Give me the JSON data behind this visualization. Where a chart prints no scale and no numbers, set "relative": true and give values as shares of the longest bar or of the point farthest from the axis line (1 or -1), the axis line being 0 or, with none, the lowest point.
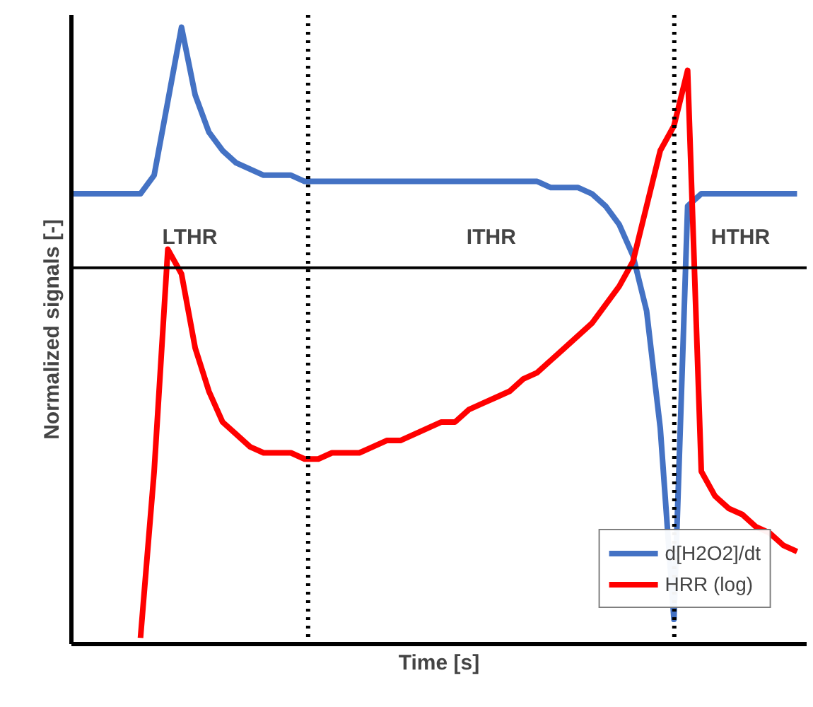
{
  "chart_data": {
    "type": "line",
    "relative": true,
    "xlabel": "Time [s]",
    "ylabel": "Normalized signals [-]",
    "categories": [
      null,
      null,
      null,
      null,
      null,
      null,
      null,
      null,
      null,
      null,
      null,
      null,
      null,
      null,
      null,
      null,
      null,
      null,
      null,
      null,
      null,
      null,
      null,
      null,
      null,
      null,
      null,
      null,
      null,
      null,
      null,
      null,
      null,
      null,
      null,
      null,
      null,
      null,
      null,
      null,
      null,
      null,
      null,
      null,
      null,
      null,
      null,
      null,
      null,
      null,
      null,
      null,
      null,
      null
    ],
    "series": [
      {
        "name": "d[H2O2]/dt",
        "color": "#4472c4",
        "values": [
          0.73,
          0.73,
          0.73,
          0.73,
          0.73,
          0.73,
          0.76,
          0.88,
          1.0,
          0.89,
          0.83,
          0.8,
          0.78,
          0.77,
          0.76,
          0.76,
          0.76,
          0.75,
          0.75,
          0.75,
          0.75,
          0.75,
          0.75,
          0.75,
          0.75,
          0.75,
          0.75,
          0.75,
          0.75,
          0.75,
          0.75,
          0.75,
          0.75,
          0.75,
          0.75,
          0.74,
          0.74,
          0.74,
          0.73,
          0.71,
          0.68,
          0.63,
          0.54,
          0.35,
          0.04,
          0.71,
          0.73,
          0.73,
          0.73,
          0.73,
          0.73,
          0.73,
          0.73,
          0.73
        ]
      },
      {
        "name": "HRR (log)",
        "color": "#ff0000",
        "values": [
          null,
          null,
          null,
          null,
          null,
          0.01,
          0.28,
          0.64,
          0.6,
          0.48,
          0.41,
          0.36,
          0.34,
          0.32,
          0.31,
          0.31,
          0.31,
          0.3,
          0.3,
          0.31,
          0.31,
          0.31,
          0.32,
          0.33,
          0.33,
          0.34,
          0.35,
          0.36,
          0.36,
          0.38,
          0.39,
          0.4,
          0.41,
          0.43,
          0.44,
          0.46,
          0.48,
          0.5,
          0.52,
          0.55,
          0.58,
          0.62,
          0.71,
          0.8,
          0.84,
          0.93,
          0.28,
          0.24,
          0.22,
          0.21,
          0.19,
          0.18,
          0.16,
          0.15
        ]
      }
    ],
    "ref_lines": [
      {
        "axis": "y",
        "value": 0.61,
        "color": "#000000",
        "line_style": "solid"
      }
    ],
    "annotations": [
      "LTHR",
      "ITHR",
      "HTHR"
    ],
    "legend": "bottom right",
    "line_style": "solid",
    "marker": "none"
  }
}
